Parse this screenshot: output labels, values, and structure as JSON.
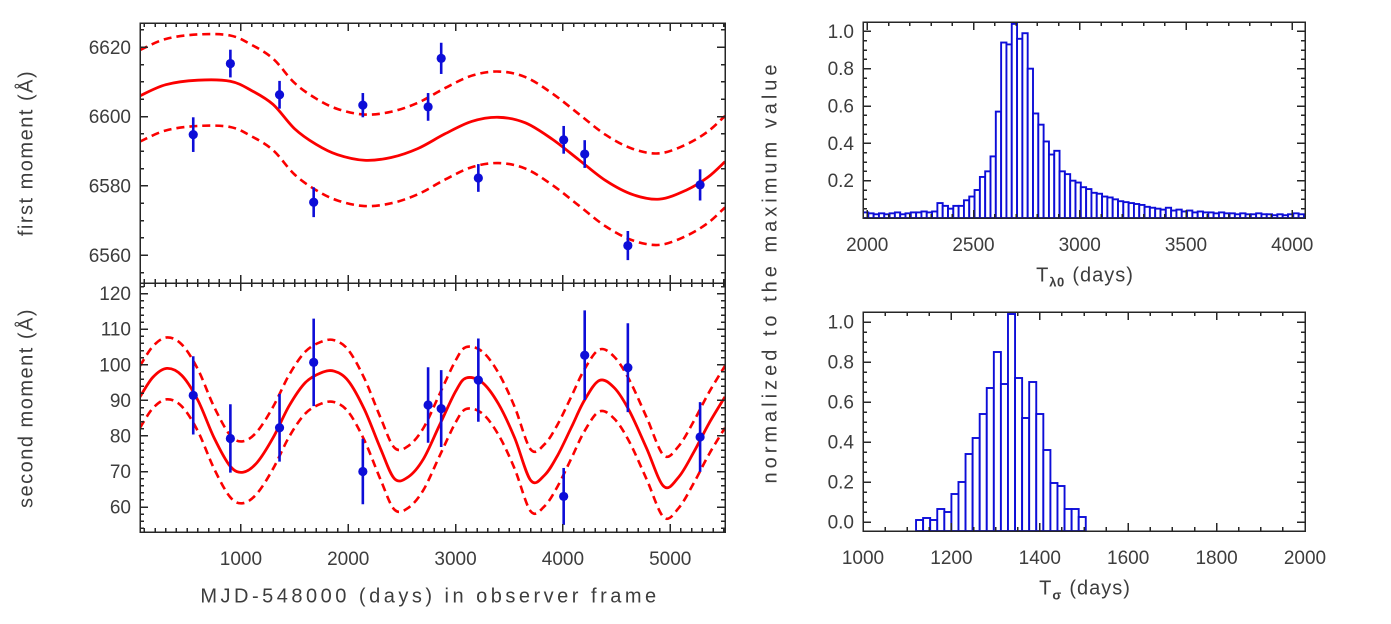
{
  "figure": {
    "description": "Two-column astronomy figure: left column shows first and second moment light curves with sinusoidal model fits; right column shows normalized period histograms",
    "colors": {
      "data_blue": "#0d0dd8",
      "model_red": "#fb0000",
      "axis": "#262626",
      "tick_label": "#3d3d3d",
      "background": "#ffffff"
    },
    "shared_right_ylabel": "normalized to the maximum value"
  },
  "chart_data": [
    {
      "id": "first_moment",
      "type": "scatter",
      "title": "",
      "ylabel": "first moment (Å)",
      "xlabel": "",
      "ylim": [
        6552,
        6627
      ],
      "yticks": [
        6560,
        6580,
        6600,
        6620
      ],
      "ytick_decimals": 0,
      "y_minor_step": 5,
      "xlim": [
        60,
        5510
      ],
      "xticks": [
        1000,
        2000,
        3000,
        4000,
        5000
      ],
      "x_minor_step": 100,
      "show_x_labels": false,
      "grid": false,
      "points": {
        "x": [
          556,
          902,
          1360,
          1678,
          2136,
          2744,
          2866,
          3212,
          4007,
          4203,
          4605,
          5278
        ],
        "y": [
          6594.8,
          6615.3,
          6606.3,
          6575.3,
          6603.3,
          6602.8,
          6616.8,
          6582.3,
          6593.3,
          6589.2,
          6562.8,
          6580.3
        ],
        "err": [
          5.0,
          4.0,
          4.0,
          4.3,
          3.5,
          4.0,
          4.5,
          4.0,
          4.0,
          4.0,
          4.2,
          4.5
        ]
      },
      "model": {
        "x": [
          60,
          300,
          600,
          900,
          1100,
          1300,
          1500,
          1700,
          1900,
          2150,
          2400,
          2650,
          2900,
          3150,
          3400,
          3650,
          3900,
          4150,
          4400,
          4650,
          4900,
          5150,
          5350,
          5510
        ],
        "y": [
          6606.0,
          6609.2,
          6610.5,
          6610.2,
          6607.5,
          6603.5,
          6596.5,
          6592.0,
          6589.0,
          6587.4,
          6588.2,
          6590.8,
          6595.0,
          6598.6,
          6599.8,
          6598.2,
          6593.5,
          6587.5,
          6581.5,
          6577.5,
          6576.2,
          6578.8,
          6582.5,
          6587.0
        ]
      },
      "envelope_offset": 13.2
    },
    {
      "id": "second_moment",
      "type": "scatter",
      "title": "",
      "ylabel": "second moment (Å)",
      "xlabel": "MJD-548000 (days) in observer frame",
      "ylim": [
        53,
        123
      ],
      "yticks": [
        60,
        70,
        80,
        90,
        100,
        110,
        120
      ],
      "ytick_decimals": 0,
      "y_minor_step": 2,
      "xlim": [
        60,
        5510
      ],
      "xticks": [
        1000,
        2000,
        3000,
        4000,
        5000
      ],
      "x_minor_step": 100,
      "show_x_labels": true,
      "grid": false,
      "points": {
        "x": [
          556,
          902,
          1360,
          1678,
          2136,
          2744,
          2866,
          3212,
          4007,
          4203,
          4605,
          5278
        ],
        "y": [
          91.4,
          79.3,
          82.3,
          100.7,
          70.0,
          88.7,
          87.7,
          95.7,
          63.0,
          102.7,
          99.2,
          79.7
        ],
        "err": [
          11.0,
          9.6,
          9.5,
          12.3,
          9.2,
          10.6,
          10.8,
          11.7,
          8.0,
          12.6,
          12.5,
          9.8
        ]
      },
      "model": {
        "x": [
          60,
          180,
          310,
          450,
          600,
          750,
          900,
          1020,
          1150,
          1300,
          1450,
          1600,
          1750,
          1870,
          2000,
          2150,
          2300,
          2430,
          2560,
          2700,
          2850,
          3000,
          3100,
          3250,
          3400,
          3550,
          3700,
          3830,
          3950,
          4080,
          4200,
          4340,
          4480,
          4620,
          4780,
          4940,
          5080,
          5220,
          5360,
          5510
        ],
        "y": [
          91.0,
          96.5,
          99.0,
          97.0,
          90.0,
          79.5,
          71.5,
          69.8,
          72.5,
          79.5,
          88.5,
          95.0,
          97.8,
          98.2,
          95.5,
          87.5,
          76.5,
          68.0,
          68.5,
          73.5,
          83.0,
          92.5,
          96.3,
          95.0,
          89.0,
          79.5,
          67.5,
          69.0,
          74.5,
          82.5,
          90.0,
          95.6,
          93.5,
          87.0,
          76.5,
          65.8,
          68.5,
          75.5,
          83.5,
          91.0
        ]
      },
      "envelope_offset": 8.7
    },
    {
      "id": "t_lambda0_hist",
      "type": "bar",
      "title": "",
      "ylabel": "",
      "xlabel_parts": {
        "base": "T",
        "sub": "λ0",
        "rest": "(days)"
      },
      "ylim": [
        0,
        1.05
      ],
      "yticks": [
        0.2,
        0.4,
        0.6,
        0.8,
        1.0
      ],
      "ytick_decimals": 1,
      "y_minor_step": 0.05,
      "xlim": [
        1980,
        4060
      ],
      "xticks": [
        2000,
        2500,
        3000,
        3500,
        4000
      ],
      "x_minor_step": 100,
      "show_x_labels": true,
      "grid": false,
      "bin_start": 1980,
      "bin_width": 25,
      "values": [
        0.03,
        0.025,
        0.02,
        0.025,
        0.02,
        0.025,
        0.03,
        0.02,
        0.025,
        0.03,
        0.03,
        0.035,
        0.03,
        0.035,
        0.08,
        0.065,
        0.05,
        0.065,
        0.065,
        0.095,
        0.115,
        0.15,
        0.22,
        0.25,
        0.33,
        0.57,
        0.94,
        0.93,
        1.04,
        0.96,
        0.99,
        0.8,
        0.56,
        0.5,
        0.41,
        0.34,
        0.36,
        0.25,
        0.235,
        0.2,
        0.19,
        0.165,
        0.155,
        0.135,
        0.13,
        0.115,
        0.11,
        0.1,
        0.09,
        0.085,
        0.08,
        0.075,
        0.07,
        0.06,
        0.055,
        0.05,
        0.045,
        0.055,
        0.04,
        0.045,
        0.035,
        0.04,
        0.03,
        0.035,
        0.03,
        0.03,
        0.025,
        0.03,
        0.025,
        0.025,
        0.02,
        0.025,
        0.02,
        0.02,
        0.025,
        0.02,
        0.02,
        0.015,
        0.02,
        0.015,
        0.02,
        0.025,
        0.02
      ]
    },
    {
      "id": "t_sigma_hist",
      "type": "bar",
      "title": "",
      "ylabel": "",
      "xlabel_parts": {
        "base": "T",
        "sub": "σ",
        "rest": "(days)"
      },
      "ylim": [
        -0.045,
        1.05
      ],
      "yticks": [
        0.0,
        0.2,
        0.4,
        0.6,
        0.8,
        1.0
      ],
      "ytick_decimals": 1,
      "y_minor_step": 0.05,
      "xlim": [
        1000,
        2000
      ],
      "xticks": [
        1000,
        1200,
        1400,
        1600,
        1800,
        2000
      ],
      "x_minor_step": 50,
      "show_x_labels": true,
      "grid": false,
      "bin_start": 1120,
      "bin_width": 16,
      "values": [
        0.01,
        0.02,
        0.01,
        0.065,
        0.05,
        0.14,
        0.2,
        0.34,
        0.42,
        0.54,
        0.67,
        0.85,
        0.69,
        1.04,
        0.72,
        0.52,
        0.7,
        0.54,
        0.36,
        0.195,
        0.18,
        0.065,
        0.065,
        0.025
      ]
    }
  ]
}
